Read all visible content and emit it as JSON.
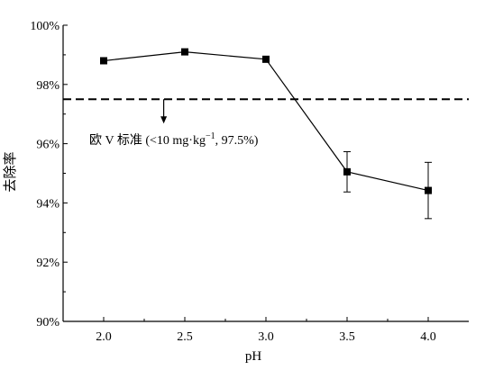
{
  "chart_data": {
    "type": "line",
    "xlabel": "pH",
    "ylabel": "去除率",
    "x": [
      2.0,
      2.5,
      3.0,
      3.5,
      4.0
    ],
    "x_tick_labels": [
      "2.0",
      "2.5",
      "3.0",
      "3.5",
      "4.0"
    ],
    "xlim": [
      1.75,
      4.25
    ],
    "ylim": [
      90,
      100
    ],
    "y_tick_values": [
      90,
      92,
      94,
      96,
      98,
      100
    ],
    "y_tick_labels": [
      "90%",
      "92%",
      "94%",
      "96%",
      "98%",
      "100%"
    ],
    "series": [
      {
        "values": [
          98.8,
          99.1,
          98.85,
          95.05,
          94.42
        ],
        "error": [
          0.08,
          0.05,
          0.06,
          0.68,
          0.95
        ],
        "marker": "square",
        "color": "#000000"
      }
    ],
    "reference_line": {
      "y": 97.5,
      "style": "dashed",
      "label_prefix": "欧 V 标准 (<10 mg·kg",
      "label_superscript": "−1",
      "label_suffix": ", 97.5%)",
      "arrow_x": 2.37
    },
    "grid": false,
    "legend": "none"
  }
}
